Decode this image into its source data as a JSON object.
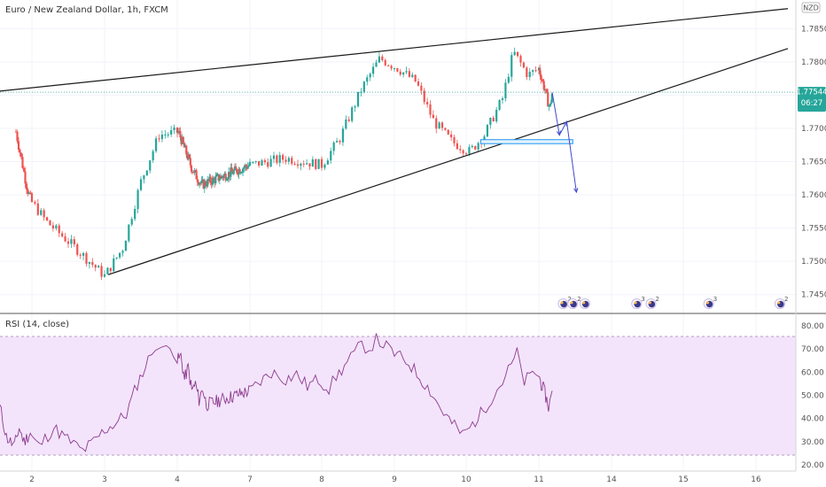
{
  "chart_data": [
    {
      "type": "candlestick",
      "title": "Euro / New Zealand Dollar, 1h, FXCM",
      "currency_label": "NZD",
      "ylim": [
        1.7435,
        1.7885
      ],
      "y_ticks": [
        "1.78500",
        "1.78000",
        "1.77500",
        "1.77000",
        "1.76500",
        "1.76000",
        "1.75500",
        "1.75000",
        "1.74500"
      ],
      "x_ticks": [
        "2",
        "3",
        "4",
        "7",
        "8",
        "9",
        "10",
        "11",
        "14",
        "15",
        "16"
      ],
      "last_price": "1.77544",
      "countdown": "06:27",
      "colors": {
        "up": "#26a69a",
        "down": "#ef5350",
        "trendline": "#1a1a1a",
        "forecast": "#3f48cc",
        "zone": "#2196f3"
      },
      "key_points": [
        {
          "day": 1.5,
          "price": 1.7695
        },
        {
          "day": 1.85,
          "price": 1.761
        },
        {
          "day": 2.2,
          "price": 1.756
        },
        {
          "day": 2.6,
          "price": 1.752
        },
        {
          "day": 3.0,
          "price": 1.7478
        },
        {
          "day": 3.25,
          "price": 1.752
        },
        {
          "day": 3.5,
          "price": 1.762
        },
        {
          "day": 3.75,
          "price": 1.769
        },
        {
          "day": 4.05,
          "price": 1.7695
        },
        {
          "day": 4.3,
          "price": 1.767
        },
        {
          "day": 4.6,
          "price": 1.764
        },
        {
          "day": 5.0,
          "price": 1.7615
        },
        {
          "day": 7.0,
          "price": 1.7645
        },
        {
          "day": 7.5,
          "price": 1.7655
        },
        {
          "day": 8.0,
          "price": 1.7645
        },
        {
          "day": 8.25,
          "price": 1.7685
        },
        {
          "day": 8.55,
          "price": 1.776
        },
        {
          "day": 8.8,
          "price": 1.7805
        },
        {
          "day": 9.05,
          "price": 1.779
        },
        {
          "day": 9.3,
          "price": 1.777
        },
        {
          "day": 9.55,
          "price": 1.771
        },
        {
          "day": 9.8,
          "price": 1.768
        },
        {
          "day": 10.05,
          "price": 1.7665
        },
        {
          "day": 10.25,
          "price": 1.769
        },
        {
          "day": 10.5,
          "price": 1.7745
        },
        {
          "day": 10.65,
          "price": 1.7815
        },
        {
          "day": 10.85,
          "price": 1.778
        },
        {
          "day": 11.0,
          "price": 1.779
        },
        {
          "day": 11.2,
          "price": 1.7765
        },
        {
          "day": 11.45,
          "price": 1.773
        },
        {
          "day": 11.55,
          "price": 1.7754
        }
      ],
      "trendlines": [
        {
          "start": {
            "day": 1.0,
            "price": 1.7756
          },
          "end": {
            "day": 16.4,
            "price": 1.788
          }
        },
        {
          "start": {
            "day": 3.05,
            "price": 1.748
          },
          "end": {
            "day": 16.4,
            "price": 1.782
          }
        }
      ],
      "support_zone": {
        "day_start": 10.2,
        "day_end": 12.4,
        "price_low": 1.7677,
        "price_high": 1.7683
      },
      "forecast_path": [
        {
          "day": 11.55,
          "price": 1.7754
        },
        {
          "day": 11.85,
          "price": 1.769
        },
        {
          "day": 12.15,
          "price": 1.771
        },
        {
          "day": 12.55,
          "price": 1.7604
        }
      ]
    },
    {
      "type": "line",
      "title": "RSI (14, close)",
      "ylim": [
        20,
        80
      ],
      "y_ticks": [
        "80.00",
        "70.00",
        "60.00",
        "50.00",
        "40.00",
        "30.00",
        "20.00"
      ],
      "band": [
        30,
        70
      ],
      "colors": {
        "line": "#8e3a8e",
        "band": "#f3e4fb"
      },
      "points": [
        {
          "day": 1.0,
          "value": 45
        },
        {
          "day": 1.2,
          "value": 32
        },
        {
          "day": 1.45,
          "value": 28
        },
        {
          "day": 1.6,
          "value": 36
        },
        {
          "day": 1.75,
          "value": 30
        },
        {
          "day": 1.95,
          "value": 34
        },
        {
          "day": 2.1,
          "value": 28
        },
        {
          "day": 2.3,
          "value": 36
        },
        {
          "day": 2.45,
          "value": 32
        },
        {
          "day": 2.7,
          "value": 26
        },
        {
          "day": 2.85,
          "value": 30
        },
        {
          "day": 3.0,
          "value": 35
        },
        {
          "day": 3.15,
          "value": 38
        },
        {
          "day": 3.3,
          "value": 42
        },
        {
          "day": 3.45,
          "value": 55
        },
        {
          "day": 3.6,
          "value": 65
        },
        {
          "day": 3.7,
          "value": 72
        },
        {
          "day": 3.8,
          "value": 69
        },
        {
          "day": 3.9,
          "value": 73
        },
        {
          "day": 4.0,
          "value": 65
        },
        {
          "day": 4.15,
          "value": 67
        },
        {
          "day": 4.3,
          "value": 57
        },
        {
          "day": 4.45,
          "value": 62
        },
        {
          "day": 4.6,
          "value": 52
        },
        {
          "day": 4.75,
          "value": 55
        },
        {
          "day": 4.9,
          "value": 48
        },
        {
          "day": 5.05,
          "value": 53
        },
        {
          "day": 5.2,
          "value": 46
        },
        {
          "day": 7.0,
          "value": 52
        },
        {
          "day": 7.15,
          "value": 56
        },
        {
          "day": 7.3,
          "value": 60
        },
        {
          "day": 7.5,
          "value": 57
        },
        {
          "day": 7.65,
          "value": 59
        },
        {
          "day": 7.8,
          "value": 54
        },
        {
          "day": 7.95,
          "value": 57
        },
        {
          "day": 8.1,
          "value": 53
        },
        {
          "day": 8.2,
          "value": 58
        },
        {
          "day": 8.35,
          "value": 64
        },
        {
          "day": 8.45,
          "value": 68
        },
        {
          "day": 8.55,
          "value": 72
        },
        {
          "day": 8.65,
          "value": 70
        },
        {
          "day": 8.75,
          "value": 74
        },
        {
          "day": 8.85,
          "value": 72
        },
        {
          "day": 9.0,
          "value": 68
        },
        {
          "day": 9.2,
          "value": 64
        },
        {
          "day": 9.35,
          "value": 58
        },
        {
          "day": 9.5,
          "value": 52
        },
        {
          "day": 9.65,
          "value": 44
        },
        {
          "day": 9.8,
          "value": 38
        },
        {
          "day": 9.95,
          "value": 33
        },
        {
          "day": 10.05,
          "value": 36
        },
        {
          "day": 10.2,
          "value": 42
        },
        {
          "day": 10.35,
          "value": 49
        },
        {
          "day": 10.5,
          "value": 56
        },
        {
          "day": 10.62,
          "value": 63
        },
        {
          "day": 10.7,
          "value": 68
        },
        {
          "day": 10.8,
          "value": 56
        },
        {
          "day": 10.95,
          "value": 60
        },
        {
          "day": 11.1,
          "value": 55
        },
        {
          "day": 11.25,
          "value": 51
        },
        {
          "day": 11.4,
          "value": 45
        },
        {
          "day": 11.5,
          "value": 49
        },
        {
          "day": 11.55,
          "value": 52
        }
      ]
    }
  ],
  "events": [
    {
      "day": 12.0,
      "count": "2"
    },
    {
      "day": 12.4,
      "count": "2"
    },
    {
      "day": 12.9,
      "count": ""
    },
    {
      "day": 14.35,
      "count": "3"
    },
    {
      "day": 14.55,
      "count": "2"
    },
    {
      "day": 15.35,
      "count": "3"
    },
    {
      "day": 16.3,
      "count": "2"
    }
  ]
}
